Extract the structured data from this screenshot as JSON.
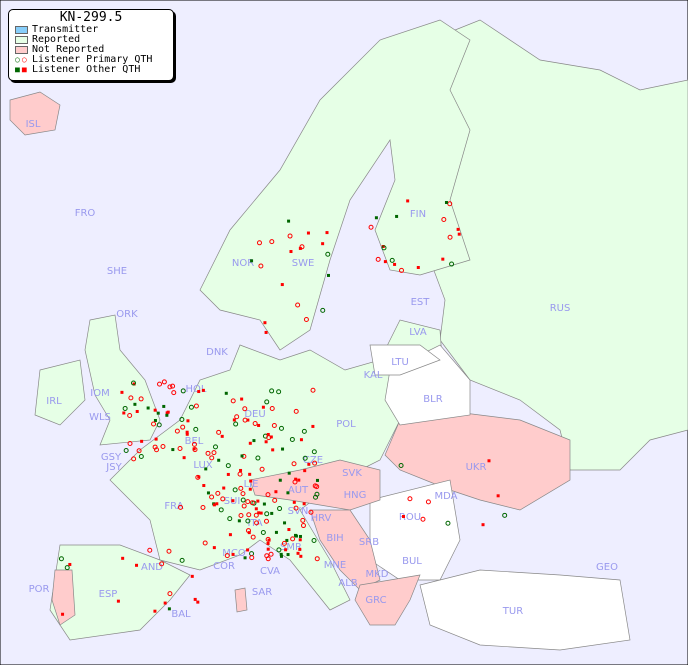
{
  "title": "KN-299.5",
  "legend": [
    {
      "label": "Transmitter",
      "color": "#87cefa"
    },
    {
      "label": "Reported",
      "color": "#e6ffe6"
    },
    {
      "label": "Not Reported",
      "color": "#ffcccc"
    },
    {
      "label": "Listener Primary QTH",
      "icon": "open-circle"
    },
    {
      "label": "Listener Other QTH",
      "icon": "filled-square"
    }
  ],
  "colors": {
    "sea": "#eeeeff",
    "reported": "#e6ffe6",
    "not_reported": "#ffcccc",
    "no_data": "#ffffff",
    "label": "#9999ee",
    "marker_red": "#ff0000",
    "marker_green": "#006600"
  },
  "countries": {
    "ISL": "ISL",
    "FRO": "FRO",
    "SHE": "SHE",
    "ORK": "ORK",
    "NOR": "NOR",
    "SWE": "SWE",
    "FIN": "FIN",
    "EST": "EST",
    "LVA": "LVA",
    "LTU": "LTU",
    "RUS": "RUS",
    "DNK": "DNK",
    "IRL": "IRL",
    "IOM": "IOM",
    "WLS": "WLS",
    "HOL": "HOL",
    "DEU": "DEU",
    "POL": "POL",
    "KAL": "KAL",
    "BLR": "BLR",
    "UKR": "UKR",
    "CZE": "CZE",
    "SVK": "SVK",
    "LUX": "LUX",
    "BEL": "BEL",
    "GSY": "GSY",
    "JSY": "JSY",
    "FRA": "FRA",
    "SUI": "SUI",
    "LIE": "LIE",
    "AUT": "AUT",
    "HNG": "HNG",
    "MDA": "MDA",
    "ROU": "ROU",
    "SVN": "SVN",
    "HRV": "HRV",
    "BIH": "BIH",
    "SRB": "SRB",
    "BUL": "BUL",
    "MNE": "MNE",
    "MKD": "MKD",
    "ALB": "ALB",
    "GRC": "GRC",
    "TUR": "TUR",
    "GEO": "GEO",
    "ITA": "ITA",
    "SMR": "SMR",
    "MCO": "MCO",
    "COR": "COR",
    "CVA": "CVA",
    "SAR": "SAR",
    "AND": "AND",
    "POR": "POR",
    "ESP": "ESP",
    "BAL": "BAL"
  }
}
